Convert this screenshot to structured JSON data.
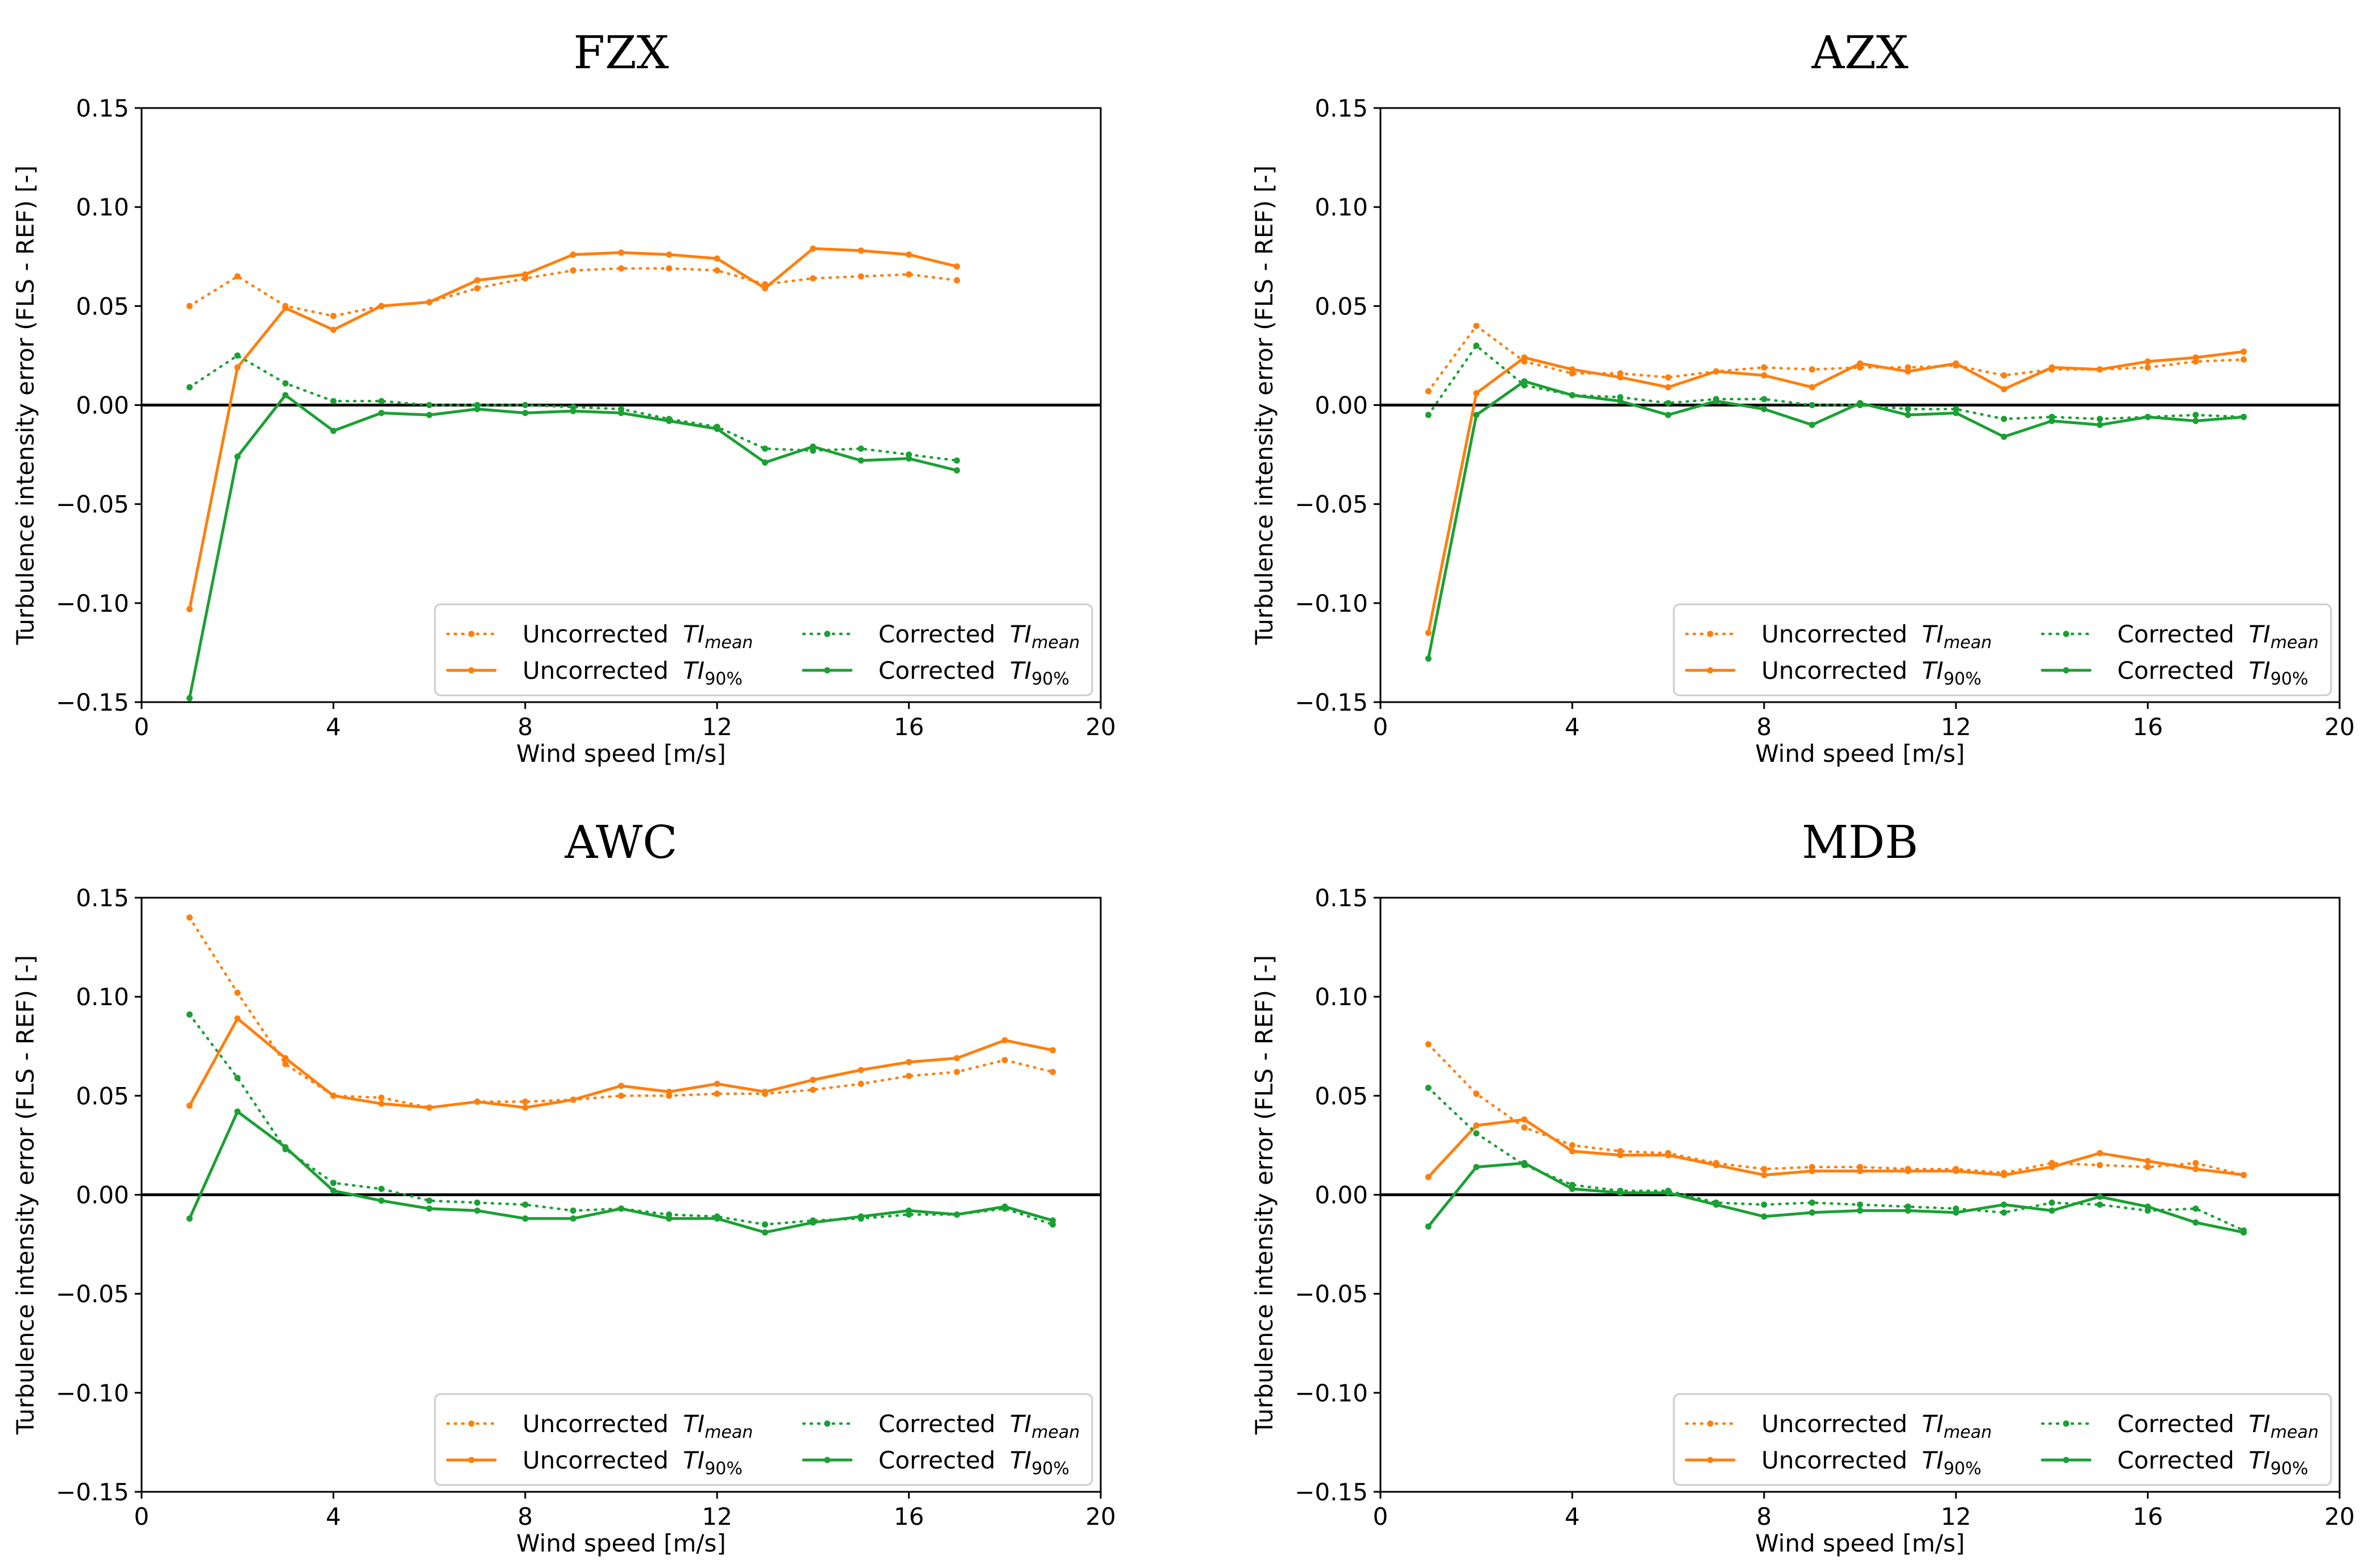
{
  "colors": {
    "uncorrected": "#ff7f0e",
    "corrected": "#1aa034",
    "zero_line": "#000000"
  },
  "legend": {
    "entries": [
      {
        "key": "unc_mean",
        "text": "Uncorrected ",
        "ti": "TI",
        "sub": "mean",
        "style": "dotted",
        "color": "uncorrected"
      },
      {
        "key": "cor_mean",
        "text": "Corrected ",
        "ti": "TI",
        "sub": "mean",
        "style": "dotted",
        "color": "corrected"
      },
      {
        "key": "unc_90",
        "text": "Uncorrected ",
        "ti": "TI",
        "sub": "90%",
        "style": "solid",
        "color": "uncorrected"
      },
      {
        "key": "cor_90",
        "text": "Corrected ",
        "ti": "TI",
        "sub": "90%",
        "style": "solid",
        "color": "corrected"
      }
    ]
  },
  "chart_data": [
    {
      "type": "line",
      "title": "FZX",
      "xlabel": "Wind speed [m/s]",
      "ylabel": "Turbulence intensity error (FLS - REF) [-]",
      "xlim": [
        0,
        20
      ],
      "ylim": [
        -0.15,
        0.15
      ],
      "xticks": [
        "0",
        "4",
        "8",
        "12",
        "16",
        "20"
      ],
      "yticks": [
        "0.15",
        "0.10",
        "0.05",
        "0.00",
        "−0.05",
        "−0.10",
        "−0.15"
      ],
      "legend_position": "lower-right",
      "x": [
        1,
        2,
        3,
        4,
        5,
        6,
        7,
        8,
        9,
        10,
        11,
        12,
        13,
        14,
        15,
        16,
        17
      ],
      "series": [
        {
          "name": "Uncorrected TI mean",
          "key": "unc_mean",
          "values": [
            0.05,
            0.065,
            0.05,
            0.045,
            0.05,
            0.052,
            0.059,
            0.064,
            0.068,
            0.069,
            0.069,
            0.068,
            0.061,
            0.064,
            0.065,
            0.066,
            0.063
          ]
        },
        {
          "name": "Uncorrected TI 90%",
          "key": "unc_90",
          "values": [
            -0.103,
            0.019,
            0.049,
            0.038,
            0.05,
            0.052,
            0.063,
            0.066,
            0.076,
            0.077,
            0.076,
            0.074,
            0.059,
            0.079,
            0.078,
            0.076,
            0.07
          ]
        },
        {
          "name": "Corrected TI mean",
          "key": "cor_mean",
          "values": [
            0.009,
            0.025,
            0.011,
            0.002,
            0.002,
            0.0,
            0.0,
            0.0,
            -0.001,
            -0.002,
            -0.007,
            -0.011,
            -0.022,
            -0.023,
            -0.022,
            -0.025,
            -0.028
          ]
        },
        {
          "name": "Corrected TI 90%",
          "key": "cor_90",
          "values": [
            -0.148,
            -0.026,
            0.005,
            -0.013,
            -0.004,
            -0.005,
            -0.002,
            -0.004,
            -0.003,
            -0.004,
            -0.008,
            -0.012,
            -0.029,
            -0.021,
            -0.028,
            -0.027,
            -0.033
          ]
        }
      ]
    },
    {
      "type": "line",
      "title": "AZX",
      "xlabel": "Wind speed [m/s]",
      "ylabel": "Turbulence intensity error (FLS - REF) [-]",
      "xlim": [
        0,
        20
      ],
      "ylim": [
        -0.15,
        0.15
      ],
      "xticks": [
        "0",
        "4",
        "8",
        "12",
        "16",
        "20"
      ],
      "yticks": [
        "0.15",
        "0.10",
        "0.05",
        "0.00",
        "−0.05",
        "−0.10",
        "−0.15"
      ],
      "legend_position": "lower-right",
      "x": [
        1,
        2,
        3,
        4,
        5,
        6,
        7,
        8,
        9,
        10,
        11,
        12,
        13,
        14,
        15,
        16,
        17,
        18
      ],
      "series": [
        {
          "name": "Uncorrected TI mean",
          "key": "unc_mean",
          "values": [
            0.007,
            0.04,
            0.022,
            0.016,
            0.016,
            0.014,
            0.017,
            0.019,
            0.018,
            0.019,
            0.019,
            0.02,
            0.015,
            0.018,
            0.018,
            0.019,
            0.022,
            0.023
          ]
        },
        {
          "name": "Uncorrected TI 90%",
          "key": "unc_90",
          "values": [
            -0.115,
            0.006,
            0.024,
            0.018,
            0.014,
            0.009,
            0.017,
            0.015,
            0.009,
            0.021,
            0.017,
            0.021,
            0.008,
            0.019,
            0.018,
            0.022,
            0.024,
            0.027
          ]
        },
        {
          "name": "Corrected TI mean",
          "key": "cor_mean",
          "values": [
            -0.005,
            0.03,
            0.01,
            0.005,
            0.004,
            0.001,
            0.003,
            0.003,
            0.0,
            0.0,
            -0.002,
            -0.002,
            -0.007,
            -0.006,
            -0.007,
            -0.006,
            -0.005,
            -0.006
          ]
        },
        {
          "name": "Corrected TI 90%",
          "key": "cor_90",
          "values": [
            -0.128,
            -0.005,
            0.012,
            0.005,
            0.002,
            -0.005,
            0.002,
            -0.002,
            -0.01,
            0.001,
            -0.005,
            -0.004,
            -0.016,
            -0.008,
            -0.01,
            -0.006,
            -0.008,
            -0.006
          ]
        }
      ]
    },
    {
      "type": "line",
      "title": "AWC",
      "xlabel": "Wind speed [m/s]",
      "ylabel": "Turbulence intensity error (FLS - REF) [-]",
      "xlim": [
        0,
        20
      ],
      "ylim": [
        -0.15,
        0.15
      ],
      "xticks": [
        "0",
        "4",
        "8",
        "12",
        "16",
        "20"
      ],
      "yticks": [
        "0.15",
        "0.10",
        "0.05",
        "0.00",
        "−0.05",
        "−0.10",
        "−0.15"
      ],
      "legend_position": "lower-right",
      "x": [
        1,
        2,
        3,
        4,
        5,
        6,
        7,
        8,
        9,
        10,
        11,
        12,
        13,
        14,
        15,
        16,
        17,
        18,
        19
      ],
      "series": [
        {
          "name": "Uncorrected TI mean",
          "key": "unc_mean",
          "values": [
            0.14,
            0.102,
            0.066,
            0.05,
            0.049,
            0.044,
            0.047,
            0.047,
            0.048,
            0.05,
            0.05,
            0.051,
            0.051,
            0.053,
            0.056,
            0.06,
            0.062,
            0.068,
            0.062
          ]
        },
        {
          "name": "Uncorrected TI 90%",
          "key": "unc_90",
          "values": [
            0.045,
            0.089,
            0.069,
            0.05,
            0.046,
            0.044,
            0.047,
            0.044,
            0.048,
            0.055,
            0.052,
            0.056,
            0.052,
            0.058,
            0.063,
            0.067,
            0.069,
            0.078,
            0.073
          ]
        },
        {
          "name": "Corrected TI mean",
          "key": "cor_mean",
          "values": [
            0.091,
            0.059,
            0.023,
            0.006,
            0.003,
            -0.003,
            -0.004,
            -0.005,
            -0.008,
            -0.007,
            -0.01,
            -0.011,
            -0.015,
            -0.013,
            -0.012,
            -0.01,
            -0.01,
            -0.007,
            -0.015
          ]
        },
        {
          "name": "Corrected TI 90%",
          "key": "cor_90",
          "values": [
            -0.012,
            0.042,
            0.024,
            0.002,
            -0.003,
            -0.007,
            -0.008,
            -0.012,
            -0.012,
            -0.007,
            -0.012,
            -0.012,
            -0.019,
            -0.014,
            -0.011,
            -0.008,
            -0.01,
            -0.006,
            -0.013
          ]
        }
      ]
    },
    {
      "type": "line",
      "title": "MDB",
      "xlabel": "Wind speed [m/s]",
      "ylabel": "Turbulence intensity error (FLS - REF) [-]",
      "xlim": [
        0,
        20
      ],
      "ylim": [
        -0.15,
        0.15
      ],
      "xticks": [
        "0",
        "4",
        "8",
        "12",
        "16",
        "20"
      ],
      "yticks": [
        "0.15",
        "0.10",
        "0.05",
        "0.00",
        "−0.05",
        "−0.10",
        "−0.15"
      ],
      "legend_position": "lower-right",
      "x": [
        1,
        2,
        3,
        4,
        5,
        6,
        7,
        8,
        9,
        10,
        11,
        12,
        13,
        14,
        15,
        16,
        17,
        18
      ],
      "series": [
        {
          "name": "Uncorrected TI mean",
          "key": "unc_mean",
          "values": [
            0.076,
            0.051,
            0.034,
            0.025,
            0.022,
            0.021,
            0.016,
            0.013,
            0.014,
            0.014,
            0.013,
            0.013,
            0.011,
            0.016,
            0.015,
            0.014,
            0.016,
            0.01
          ]
        },
        {
          "name": "Uncorrected TI 90%",
          "key": "unc_90",
          "values": [
            0.009,
            0.035,
            0.038,
            0.022,
            0.02,
            0.02,
            0.015,
            0.01,
            0.012,
            0.012,
            0.012,
            0.012,
            0.01,
            0.014,
            0.021,
            0.017,
            0.013,
            0.01
          ]
        },
        {
          "name": "Corrected TI mean",
          "key": "cor_mean",
          "values": [
            0.054,
            0.031,
            0.015,
            0.005,
            0.002,
            0.002,
            -0.004,
            -0.005,
            -0.004,
            -0.005,
            -0.006,
            -0.007,
            -0.009,
            -0.004,
            -0.005,
            -0.008,
            -0.007,
            -0.018
          ]
        },
        {
          "name": "Corrected TI 90%",
          "key": "cor_90",
          "values": [
            -0.016,
            0.014,
            0.016,
            0.003,
            0.001,
            0.001,
            -0.005,
            -0.011,
            -0.009,
            -0.008,
            -0.008,
            -0.009,
            -0.005,
            -0.008,
            -0.001,
            -0.006,
            -0.014,
            -0.019
          ]
        }
      ]
    }
  ]
}
